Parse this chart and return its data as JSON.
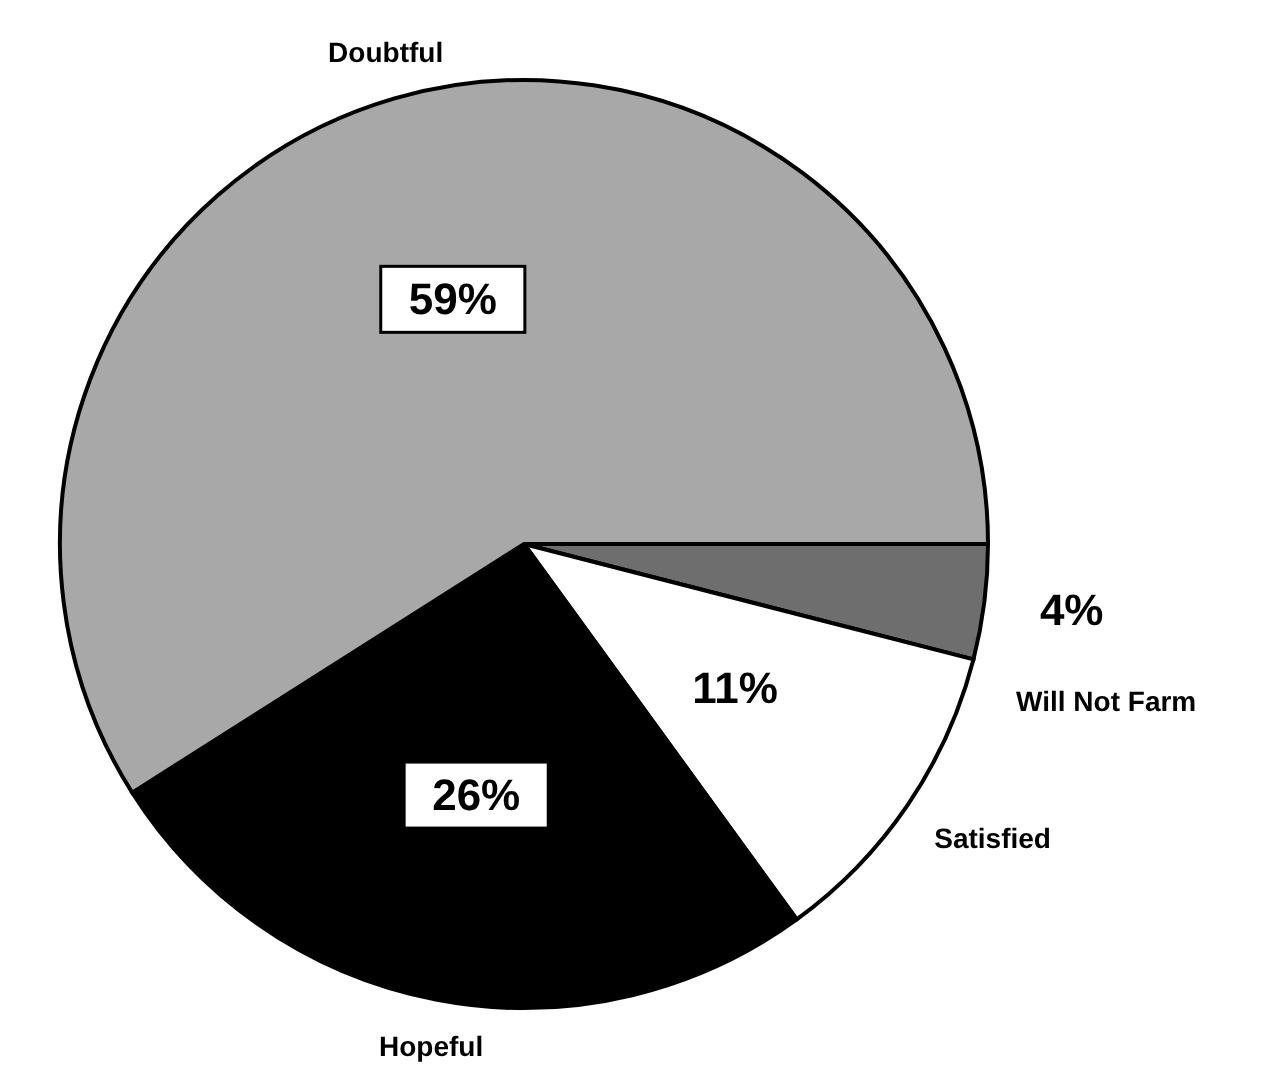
{
  "chart_data": {
    "type": "pie",
    "categories": [
      "Will Not Farm",
      "Satisfied",
      "Hopeful",
      "Doubtful"
    ],
    "values": [
      4,
      11,
      26,
      59
    ],
    "value_labels": [
      "4%",
      "11%",
      "26%",
      "59%"
    ],
    "colors": [
      "#6e6e6e",
      "#ffffff",
      "#000000",
      "#a8a8a8"
    ]
  }
}
